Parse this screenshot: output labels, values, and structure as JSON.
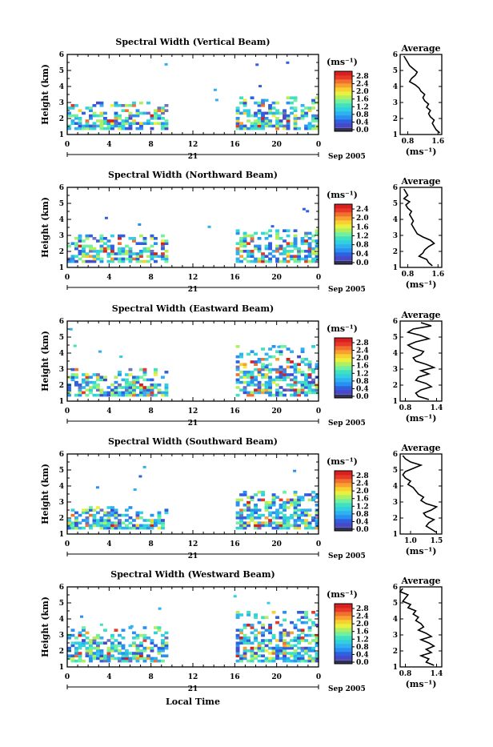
{
  "figure": {
    "xlabel": "Local Time",
    "date_label": "Sep 2005",
    "day_label": "21",
    "colorbar_unit": "(ms⁻¹)",
    "avg_xlabel": "(ms⁻¹)",
    "avg_title": "Average"
  },
  "colors": {
    "scale": [
      "#7070b8",
      "#4848c8",
      "#3060e0",
      "#2890f0",
      "#30b0f0",
      "#30d0e0",
      "#40e0c0",
      "#70f0a0",
      "#b0f060",
      "#e8f040",
      "#f8d030",
      "#f8a030",
      "#f07030",
      "#e83828",
      "#d82020"
    ]
  },
  "chart_data": [
    {
      "type": "heatmap",
      "title": "Spectral Width (Vertical Beam)",
      "ylabel": "Height (km)",
      "xlim": [
        0,
        24
      ],
      "ylim": [
        1,
        6
      ],
      "xticks": [
        "0",
        "4",
        "8",
        "12",
        "16",
        "20",
        "0"
      ],
      "yticks": [
        "1",
        "2",
        "3",
        "4",
        "5",
        "6"
      ],
      "colorbar_ticks": [
        "0.0",
        "0.4",
        "0.8",
        "1.2",
        "1.6",
        "2.0",
        "2.4",
        "2.8"
      ],
      "colorbar_range": [
        0.0,
        2.8
      ],
      "data_windows": [
        [
          0,
          9.4,
          1.3,
          3.0
        ],
        [
          16.1,
          24,
          1.3,
          3.3
        ]
      ],
      "average": {
        "xticks": [
          "0.8",
          "1.6"
        ],
        "xlim": [
          0.6,
          1.7
        ],
        "heights": [
          1.0,
          1.2,
          1.4,
          1.6,
          1.8,
          2.0,
          2.2,
          2.4,
          2.6,
          2.8,
          3.0,
          3.2,
          3.4,
          3.6,
          3.8,
          4.0,
          4.2,
          4.4,
          4.6,
          4.8,
          5.0,
          5.2,
          5.4,
          5.6,
          5.8
        ],
        "values": [
          1.65,
          1.55,
          1.5,
          1.45,
          1.5,
          1.4,
          1.35,
          1.4,
          1.3,
          1.35,
          1.25,
          1.2,
          1.25,
          1.15,
          1.1,
          1.0,
          0.85,
          0.9,
          1.0,
          1.05,
          0.95,
          0.85,
          0.8,
          0.75,
          0.7
        ]
      }
    },
    {
      "type": "heatmap",
      "title": "Spectral Width (Northward Beam)",
      "ylabel": "Height (km)",
      "xlim": [
        0,
        24
      ],
      "ylim": [
        1,
        6
      ],
      "xticks": [
        "0",
        "4",
        "8",
        "12",
        "16",
        "20",
        "0"
      ],
      "yticks": [
        "1",
        "2",
        "3",
        "4",
        "5",
        "6"
      ],
      "colorbar_ticks": [
        "0.0",
        "0.4",
        "0.8",
        "1.2",
        "1.6",
        "2.0",
        "2.4"
      ],
      "colorbar_range": [
        0.0,
        2.4
      ],
      "data_windows": [
        [
          0,
          9.4,
          1.3,
          3.0
        ],
        [
          16.1,
          24,
          1.3,
          3.3
        ]
      ],
      "average": {
        "xticks": [
          "0.8",
          "1.6"
        ],
        "xlim": [
          0.6,
          1.7
        ],
        "heights": [
          1.0,
          1.2,
          1.4,
          1.6,
          1.8,
          2.0,
          2.2,
          2.4,
          2.6,
          2.8,
          3.0,
          3.2,
          3.4,
          3.6,
          3.8,
          4.0,
          4.2,
          4.4,
          4.6,
          4.8,
          5.0,
          5.2,
          5.4,
          5.6,
          5.8
        ],
        "values": [
          1.45,
          1.35,
          1.3,
          1.1,
          1.2,
          1.25,
          1.35,
          1.5,
          1.4,
          1.2,
          1.05,
          1.0,
          0.95,
          0.9,
          0.95,
          0.9,
          0.85,
          0.9,
          0.8,
          0.75,
          0.85,
          0.7,
          0.8,
          0.75,
          0.7
        ]
      }
    },
    {
      "type": "heatmap",
      "title": "Spectral Width (Eastward Beam)",
      "ylabel": "Height (km)",
      "xlim": [
        0,
        24
      ],
      "ylim": [
        1,
        6
      ],
      "xticks": [
        "0",
        "4",
        "8",
        "12",
        "16",
        "20",
        "0"
      ],
      "yticks": [
        "1",
        "2",
        "3",
        "4",
        "5",
        "6"
      ],
      "colorbar_ticks": [
        "0.0",
        "0.4",
        "0.8",
        "1.2",
        "1.6",
        "2.0",
        "2.4",
        "2.8"
      ],
      "colorbar_range": [
        0.0,
        2.8
      ],
      "data_windows": [
        [
          0,
          9.4,
          1.3,
          3.0
        ],
        [
          16.1,
          24,
          1.3,
          4.5
        ]
      ],
      "average": {
        "xticks": [
          "0.8",
          "1.4"
        ],
        "xlim": [
          0.7,
          1.5
        ],
        "heights": [
          1.0,
          1.2,
          1.4,
          1.6,
          1.8,
          2.0,
          2.2,
          2.4,
          2.6,
          2.8,
          3.0,
          3.2,
          3.4,
          3.6,
          3.8,
          4.0,
          4.2,
          4.4,
          4.6,
          4.8,
          5.0,
          5.2,
          5.4,
          5.6,
          5.8
        ],
        "values": [
          1.25,
          1.05,
          1.0,
          1.1,
          1.3,
          1.2,
          1.0,
          1.05,
          1.25,
          1.1,
          1.35,
          1.2,
          1.0,
          0.95,
          1.1,
          1.15,
          0.95,
          0.85,
          1.0,
          1.25,
          1.1,
          0.85,
          0.95,
          1.3,
          1.1
        ]
      }
    },
    {
      "type": "heatmap",
      "title": "Spectral Width (Southward Beam)",
      "ylabel": "Height (km)",
      "xlim": [
        0,
        24
      ],
      "ylim": [
        1,
        6
      ],
      "xticks": [
        "0",
        "4",
        "8",
        "12",
        "16",
        "20",
        "0"
      ],
      "yticks": [
        "1",
        "2",
        "3",
        "4",
        "5",
        "6"
      ],
      "colorbar_ticks": [
        "0.0",
        "0.4",
        "0.8",
        "1.2",
        "1.6",
        "2.0",
        "2.4",
        "2.8"
      ],
      "colorbar_range": [
        0.0,
        2.8
      ],
      "data_windows": [
        [
          0,
          9.4,
          1.3,
          2.7
        ],
        [
          16.1,
          24,
          1.3,
          3.7
        ]
      ],
      "average": {
        "xticks": [
          "1.0",
          "1.5"
        ],
        "xlim": [
          0.8,
          1.6
        ],
        "heights": [
          1.0,
          1.2,
          1.4,
          1.6,
          1.8,
          2.0,
          2.2,
          2.4,
          2.6,
          2.8,
          3.0,
          3.2,
          3.4,
          3.6,
          3.8,
          4.0,
          4.2,
          4.4,
          4.6,
          4.8,
          5.0,
          5.2,
          5.4,
          5.6,
          5.8
        ],
        "values": [
          1.5,
          1.4,
          1.3,
          1.35,
          1.45,
          1.3,
          1.25,
          1.4,
          1.5,
          1.3,
          1.2,
          1.25,
          1.15,
          1.1,
          1.05,
          0.95,
          1.0,
          0.9,
          0.85,
          0.9,
          1.05,
          1.2,
          1.0,
          0.9,
          0.85
        ]
      }
    },
    {
      "type": "heatmap",
      "title": "Spectral Width (Westward Beam)",
      "ylabel": "Height (km)",
      "xlim": [
        0,
        24
      ],
      "ylim": [
        1,
        6
      ],
      "xticks": [
        "0",
        "4",
        "8",
        "12",
        "16",
        "20",
        "0"
      ],
      "yticks": [
        "1",
        "2",
        "3",
        "4",
        "5",
        "6"
      ],
      "colorbar_ticks": [
        "0.0",
        "0.4",
        "0.8",
        "1.2",
        "1.6",
        "2.0",
        "2.4",
        "2.8"
      ],
      "colorbar_range": [
        0.0,
        2.8
      ],
      "data_windows": [
        [
          0,
          9.4,
          1.3,
          3.4
        ],
        [
          16.1,
          24,
          1.3,
          4.4
        ]
      ],
      "average": {
        "xticks": [
          "0.8",
          "1.4"
        ],
        "xlim": [
          0.7,
          1.5
        ],
        "heights": [
          1.0,
          1.2,
          1.4,
          1.6,
          1.8,
          2.0,
          2.2,
          2.4,
          2.6,
          2.8,
          3.0,
          3.2,
          3.4,
          3.6,
          3.8,
          4.0,
          4.2,
          4.4,
          4.6,
          4.8,
          5.0,
          5.2,
          5.4,
          5.6,
          5.8
        ],
        "values": [
          1.35,
          1.2,
          1.25,
          1.1,
          1.3,
          1.2,
          1.35,
          1.25,
          1.1,
          1.3,
          1.2,
          1.05,
          1.15,
          1.1,
          1.0,
          1.05,
          0.95,
          1.0,
          0.85,
          0.9,
          0.75,
          0.8,
          0.85,
          0.7,
          0.75
        ]
      }
    }
  ]
}
